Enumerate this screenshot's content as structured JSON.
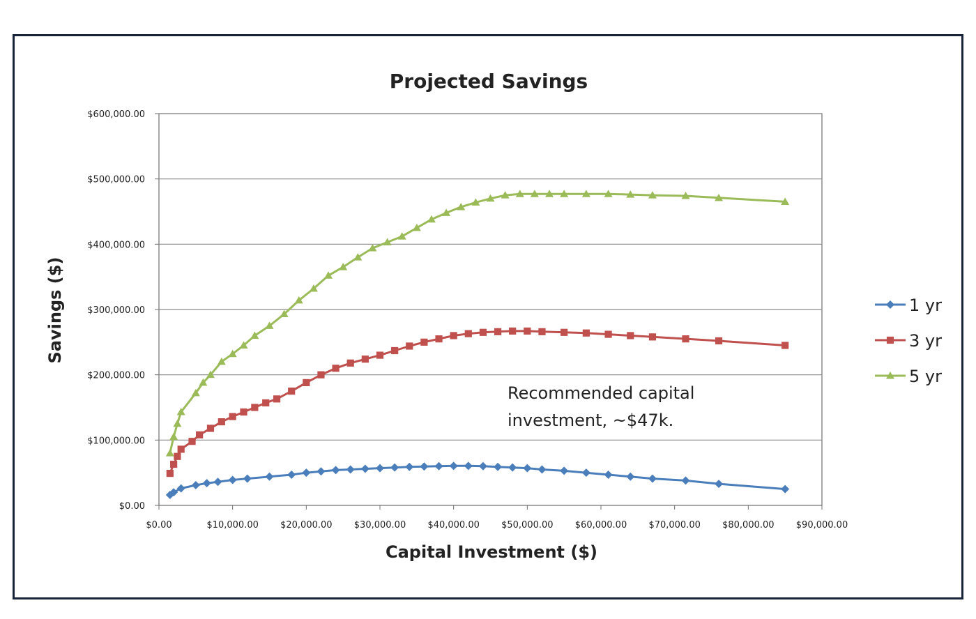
{
  "chart_data": {
    "type": "line",
    "title": "Projected Savings",
    "xlabel": "Capital Investment ($)",
    "ylabel": "Savings ($)",
    "xlim": [
      0,
      90000
    ],
    "ylim": [
      0,
      600000
    ],
    "x_ticks": [
      0,
      10000,
      20000,
      30000,
      40000,
      50000,
      60000,
      70000,
      80000,
      90000
    ],
    "y_ticks": [
      0,
      100000,
      200000,
      300000,
      400000,
      500000,
      600000
    ],
    "x_tick_labels": [
      "$0.00",
      "$10,000.00",
      "$20,000.00",
      "$30,000.00",
      "$40,000.00",
      "$50,000.00",
      "$60,000.00",
      "$70,000.00",
      "$80,000.00",
      "$90,000.00"
    ],
    "y_tick_labels": [
      "$0.00",
      "$100,000.00",
      "$200,000.00",
      "$300,000.00",
      "$400,000.00",
      "$500,000.00",
      "$600,000.00"
    ],
    "grid": "horizontal",
    "legend_position": "right",
    "annotation": [
      "Recommended capital",
      "investment, ~$47k."
    ],
    "series": [
      {
        "name": "1 yr",
        "color": "#4a7ebb",
        "marker": "diamond",
        "x": [
          1500,
          2000,
          3000,
          5000,
          6500,
          8000,
          10000,
          12000,
          15000,
          18000,
          20000,
          22000,
          24000,
          26000,
          28000,
          30000,
          32000,
          34000,
          36000,
          38000,
          40000,
          42000,
          44000,
          46000,
          48000,
          50000,
          52000,
          55000,
          58000,
          61000,
          64000,
          67000,
          71500,
          76000,
          85000
        ],
        "y": [
          16000,
          20000,
          26000,
          31000,
          34000,
          36000,
          39000,
          41000,
          44000,
          47000,
          50000,
          52000,
          54000,
          55000,
          56000,
          57000,
          58000,
          59000,
          59500,
          60000,
          60500,
          60500,
          60000,
          59000,
          58000,
          57000,
          55000,
          53000,
          50000,
          47000,
          44000,
          41000,
          38000,
          33000,
          25000
        ]
      },
      {
        "name": "3 yr",
        "color": "#c0504d",
        "marker": "square",
        "x": [
          1500,
          2000,
          2500,
          3000,
          4500,
          5500,
          7000,
          8500,
          10000,
          11500,
          13000,
          14500,
          16000,
          18000,
          20000,
          22000,
          24000,
          26000,
          28000,
          30000,
          32000,
          34000,
          36000,
          38000,
          40000,
          42000,
          44000,
          46000,
          48000,
          50000,
          52000,
          55000,
          58000,
          61000,
          64000,
          67000,
          71500,
          76000,
          85000
        ],
        "y": [
          49000,
          63000,
          75000,
          86000,
          98000,
          108000,
          118000,
          128000,
          136000,
          143000,
          150000,
          157000,
          163000,
          175000,
          188000,
          200000,
          210000,
          218000,
          224000,
          230000,
          237000,
          244000,
          250000,
          255000,
          260000,
          263000,
          265000,
          266000,
          267000,
          267000,
          266000,
          265000,
          264000,
          262000,
          260000,
          258000,
          255000,
          252000,
          245000
        ]
      },
      {
        "name": "5 yr",
        "color": "#9bbb59",
        "marker": "triangle",
        "x": [
          1500,
          2000,
          2500,
          3000,
          5000,
          6000,
          7000,
          8500,
          10000,
          11500,
          13000,
          15000,
          17000,
          19000,
          21000,
          23000,
          25000,
          27000,
          29000,
          31000,
          33000,
          35000,
          37000,
          39000,
          41000,
          43000,
          45000,
          47000,
          49000,
          51000,
          53000,
          55000,
          58000,
          61000,
          64000,
          67000,
          71500,
          76000,
          85000
        ],
        "y": [
          80000,
          105000,
          125000,
          143000,
          172000,
          188000,
          200000,
          220000,
          232000,
          245000,
          260000,
          275000,
          293000,
          314000,
          332000,
          352000,
          365000,
          380000,
          394000,
          403000,
          412000,
          425000,
          438000,
          448000,
          457000,
          464000,
          470000,
          475000,
          477000,
          477000,
          477000,
          477000,
          477000,
          477000,
          476000,
          475000,
          474000,
          471000,
          465000
        ]
      }
    ]
  }
}
